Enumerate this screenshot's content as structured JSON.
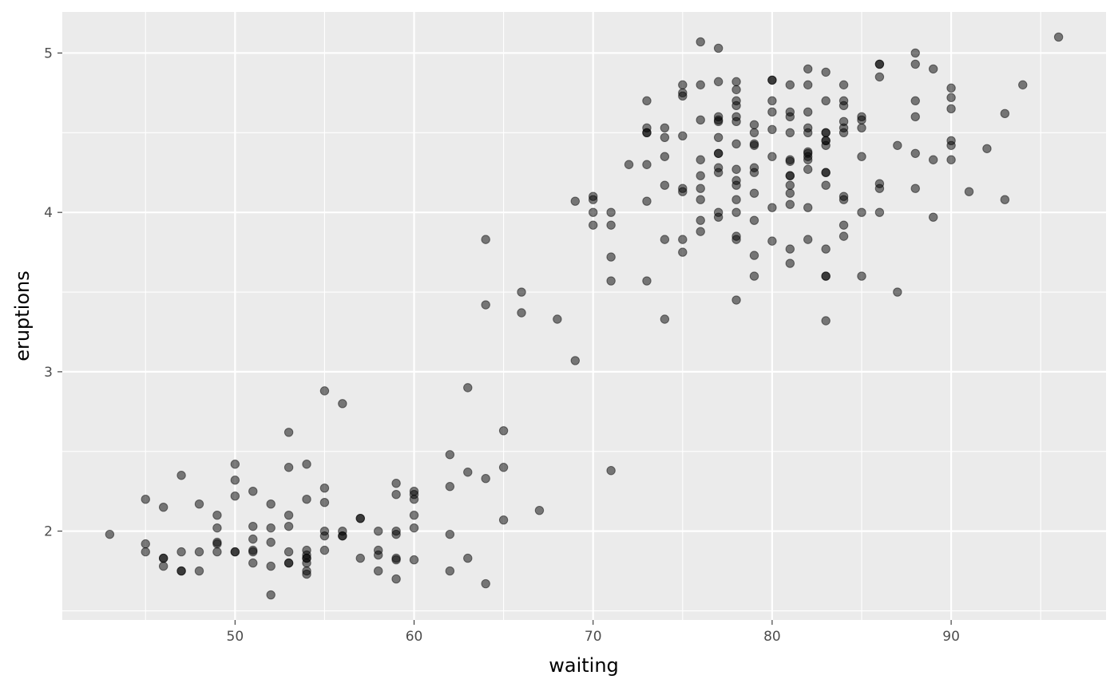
{
  "chart_data": {
    "type": "scatter",
    "xlabel": "waiting",
    "ylabel": "eruptions",
    "xlim": [
      40.35,
      98.65
    ],
    "ylim": [
      1.4425,
      5.2575
    ],
    "x_ticks": [
      50,
      60,
      70,
      80,
      90
    ],
    "y_ticks": [
      2,
      3,
      4,
      5
    ],
    "x_tick_labels": [
      "50",
      "60",
      "70",
      "80",
      "90"
    ],
    "y_tick_labels": [
      "2",
      "3",
      "4",
      "5"
    ],
    "grid": true,
    "legend": "none",
    "point_color": "#000000",
    "point_alpha": 0.5,
    "panel_background": "#ebebeb",
    "grid_color": "#ffffff",
    "points": [
      [
        43,
        1.98
      ],
      [
        45,
        2.2
      ],
      [
        45,
        1.92
      ],
      [
        45,
        1.87
      ],
      [
        46,
        2.15
      ],
      [
        46,
        1.83
      ],
      [
        46,
        1.83
      ],
      [
        46,
        1.78
      ],
      [
        47,
        2.35
      ],
      [
        47,
        1.87
      ],
      [
        47,
        1.75
      ],
      [
        47,
        1.75
      ],
      [
        48,
        2.17
      ],
      [
        48,
        1.87
      ],
      [
        48,
        1.75
      ],
      [
        49,
        2.1
      ],
      [
        49,
        2.02
      ],
      [
        49,
        1.93
      ],
      [
        49,
        1.92
      ],
      [
        49,
        1.87
      ],
      [
        50,
        2.42
      ],
      [
        50,
        2.32
      ],
      [
        50,
        2.22
      ],
      [
        50,
        1.87
      ],
      [
        50,
        1.87
      ],
      [
        51,
        2.25
      ],
      [
        51,
        2.03
      ],
      [
        51,
        1.95
      ],
      [
        51,
        1.88
      ],
      [
        51,
        1.87
      ],
      [
        51,
        1.8
      ],
      [
        52,
        2.17
      ],
      [
        52,
        2.02
      ],
      [
        52,
        1.93
      ],
      [
        52,
        1.78
      ],
      [
        52,
        1.6
      ],
      [
        53,
        2.62
      ],
      [
        53,
        2.4
      ],
      [
        53,
        2.1
      ],
      [
        53,
        2.03
      ],
      [
        53,
        1.87
      ],
      [
        53,
        1.8
      ],
      [
        53,
        1.8
      ],
      [
        54,
        2.42
      ],
      [
        54,
        2.2
      ],
      [
        54,
        1.88
      ],
      [
        54,
        1.85
      ],
      [
        54,
        1.83
      ],
      [
        54,
        1.8
      ],
      [
        54,
        1.83
      ],
      [
        54,
        1.75
      ],
      [
        54,
        1.73
      ],
      [
        55,
        2.88
      ],
      [
        55,
        2.27
      ],
      [
        55,
        2.18
      ],
      [
        55,
        2.0
      ],
      [
        55,
        1.97
      ],
      [
        55,
        1.88
      ],
      [
        56,
        2.8
      ],
      [
        56,
        2.0
      ],
      [
        56,
        1.97
      ],
      [
        56,
        1.97
      ],
      [
        57,
        2.08
      ],
      [
        57,
        2.08
      ],
      [
        57,
        1.83
      ],
      [
        58,
        2.0
      ],
      [
        58,
        1.88
      ],
      [
        58,
        1.85
      ],
      [
        58,
        1.75
      ],
      [
        59,
        2.3
      ],
      [
        59,
        2.23
      ],
      [
        59,
        2.0
      ],
      [
        59,
        1.98
      ],
      [
        59,
        1.83
      ],
      [
        59,
        1.82
      ],
      [
        59,
        1.7
      ],
      [
        60,
        2.25
      ],
      [
        60,
        2.23
      ],
      [
        60,
        2.2
      ],
      [
        60,
        2.1
      ],
      [
        60,
        2.02
      ],
      [
        60,
        1.82
      ],
      [
        62,
        2.48
      ],
      [
        62,
        2.28
      ],
      [
        62,
        1.98
      ],
      [
        62,
        1.75
      ],
      [
        63,
        2.9
      ],
      [
        63,
        2.37
      ],
      [
        63,
        1.83
      ],
      [
        64,
        3.83
      ],
      [
        64,
        3.42
      ],
      [
        64,
        2.33
      ],
      [
        64,
        1.67
      ],
      [
        65,
        2.63
      ],
      [
        65,
        2.4
      ],
      [
        65,
        2.07
      ],
      [
        66,
        3.5
      ],
      [
        66,
        3.37
      ],
      [
        67,
        2.13
      ],
      [
        68,
        3.33
      ],
      [
        69,
        4.07
      ],
      [
        69,
        3.07
      ],
      [
        70,
        4.1
      ],
      [
        70,
        4.08
      ],
      [
        70,
        4.0
      ],
      [
        70,
        3.92
      ],
      [
        71,
        4.0
      ],
      [
        71,
        3.92
      ],
      [
        71,
        3.72
      ],
      [
        71,
        3.57
      ],
      [
        71,
        2.38
      ],
      [
        72,
        4.3
      ],
      [
        73,
        4.7
      ],
      [
        73,
        4.53
      ],
      [
        73,
        4.5
      ],
      [
        73,
        4.5
      ],
      [
        73,
        4.3
      ],
      [
        73,
        4.07
      ],
      [
        73,
        3.57
      ],
      [
        74,
        4.53
      ],
      [
        74,
        4.47
      ],
      [
        74,
        4.35
      ],
      [
        74,
        4.17
      ],
      [
        74,
        3.83
      ],
      [
        74,
        3.33
      ],
      [
        75,
        4.8
      ],
      [
        75,
        4.75
      ],
      [
        75,
        4.73
      ],
      [
        75,
        4.48
      ],
      [
        75,
        4.15
      ],
      [
        75,
        4.13
      ],
      [
        75,
        3.83
      ],
      [
        75,
        3.75
      ],
      [
        76,
        5.07
      ],
      [
        76,
        4.8
      ],
      [
        76,
        4.58
      ],
      [
        76,
        4.33
      ],
      [
        76,
        4.23
      ],
      [
        76,
        4.15
      ],
      [
        76,
        4.08
      ],
      [
        76,
        3.95
      ],
      [
        76,
        3.88
      ],
      [
        77,
        5.03
      ],
      [
        77,
        4.82
      ],
      [
        77,
        4.6
      ],
      [
        77,
        4.58
      ],
      [
        77,
        4.57
      ],
      [
        77,
        4.47
      ],
      [
        77,
        4.37
      ],
      [
        77,
        4.37
      ],
      [
        77,
        4.28
      ],
      [
        77,
        4.25
      ],
      [
        77,
        4.0
      ],
      [
        77,
        3.97
      ],
      [
        78,
        4.82
      ],
      [
        78,
        4.77
      ],
      [
        78,
        4.7
      ],
      [
        78,
        4.67
      ],
      [
        78,
        4.6
      ],
      [
        78,
        4.57
      ],
      [
        78,
        4.43
      ],
      [
        78,
        4.27
      ],
      [
        78,
        4.2
      ],
      [
        78,
        4.17
      ],
      [
        78,
        4.08
      ],
      [
        78,
        4.0
      ],
      [
        78,
        3.85
      ],
      [
        78,
        3.83
      ],
      [
        78,
        3.45
      ],
      [
        79,
        4.55
      ],
      [
        79,
        4.5
      ],
      [
        79,
        4.43
      ],
      [
        79,
        4.42
      ],
      [
        79,
        4.28
      ],
      [
        79,
        4.25
      ],
      [
        79,
        4.12
      ],
      [
        79,
        3.95
      ],
      [
        79,
        3.73
      ],
      [
        79,
        3.6
      ],
      [
        80,
        4.83
      ],
      [
        80,
        4.83
      ],
      [
        80,
        4.7
      ],
      [
        80,
        4.63
      ],
      [
        80,
        4.52
      ],
      [
        80,
        4.35
      ],
      [
        80,
        4.03
      ],
      [
        80,
        3.82
      ],
      [
        81,
        4.8
      ],
      [
        81,
        4.63
      ],
      [
        81,
        4.6
      ],
      [
        81,
        4.5
      ],
      [
        81,
        4.33
      ],
      [
        81,
        4.32
      ],
      [
        81,
        4.23
      ],
      [
        81,
        4.23
      ],
      [
        81,
        4.17
      ],
      [
        81,
        4.12
      ],
      [
        81,
        4.05
      ],
      [
        81,
        3.77
      ],
      [
        81,
        3.68
      ],
      [
        82,
        4.9
      ],
      [
        82,
        4.8
      ],
      [
        82,
        4.63
      ],
      [
        82,
        4.53
      ],
      [
        82,
        4.5
      ],
      [
        82,
        4.38
      ],
      [
        82,
        4.37
      ],
      [
        82,
        4.35
      ],
      [
        82,
        4.33
      ],
      [
        82,
        4.27
      ],
      [
        82,
        4.03
      ],
      [
        82,
        3.83
      ],
      [
        83,
        4.88
      ],
      [
        83,
        4.7
      ],
      [
        83,
        4.5
      ],
      [
        83,
        4.5
      ],
      [
        83,
        4.45
      ],
      [
        83,
        4.45
      ],
      [
        83,
        4.42
      ],
      [
        83,
        4.25
      ],
      [
        83,
        4.25
      ],
      [
        83,
        4.17
      ],
      [
        83,
        3.77
      ],
      [
        83,
        3.6
      ],
      [
        83,
        3.6
      ],
      [
        83,
        3.32
      ],
      [
        84,
        4.8
      ],
      [
        84,
        4.7
      ],
      [
        84,
        4.67
      ],
      [
        84,
        4.57
      ],
      [
        84,
        4.53
      ],
      [
        84,
        4.5
      ],
      [
        84,
        4.1
      ],
      [
        84,
        4.08
      ],
      [
        84,
        3.92
      ],
      [
        84,
        3.85
      ],
      [
        85,
        4.6
      ],
      [
        85,
        4.58
      ],
      [
        85,
        4.53
      ],
      [
        85,
        4.35
      ],
      [
        85,
        4.0
      ],
      [
        85,
        3.6
      ],
      [
        86,
        4.93
      ],
      [
        86,
        4.93
      ],
      [
        86,
        4.85
      ],
      [
        86,
        4.18
      ],
      [
        86,
        4.15
      ],
      [
        86,
        4.0
      ],
      [
        87,
        4.42
      ],
      [
        87,
        3.5
      ],
      [
        88,
        5.0
      ],
      [
        88,
        4.93
      ],
      [
        88,
        4.7
      ],
      [
        88,
        4.6
      ],
      [
        88,
        4.37
      ],
      [
        88,
        4.15
      ],
      [
        89,
        4.9
      ],
      [
        89,
        4.33
      ],
      [
        89,
        3.97
      ],
      [
        90,
        4.78
      ],
      [
        90,
        4.72
      ],
      [
        90,
        4.65
      ],
      [
        90,
        4.45
      ],
      [
        90,
        4.42
      ],
      [
        90,
        4.33
      ],
      [
        91,
        4.13
      ],
      [
        92,
        4.4
      ],
      [
        93,
        4.62
      ],
      [
        93,
        4.08
      ],
      [
        94,
        4.8
      ],
      [
        96,
        5.1
      ]
    ]
  }
}
